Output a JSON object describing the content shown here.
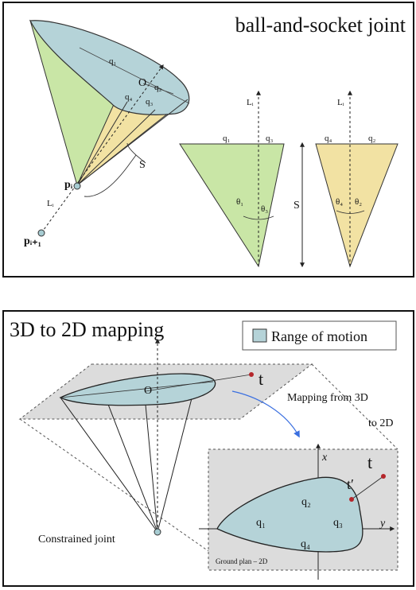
{
  "top_panel": {
    "title": "ball-and-socket joint",
    "labels": {
      "q1": "q₁",
      "q2": "q₂",
      "q3": "q₃",
      "q4": "q₄",
      "o": "O",
      "s": "S",
      "pi": "pᵢ",
      "pi1": "pᵢ₊₁",
      "li": "Lᵢ",
      "theta1": "θ₁",
      "theta2": "θ₂",
      "theta3": "θ₃",
      "theta4": "θ₄"
    }
  },
  "bottom_panel": {
    "title": "3D to 2D mapping",
    "legend": "Range of motion",
    "mapping_text_line1": "Mapping from 3D",
    "mapping_text_line2": "to 2D",
    "constrained_joint": "Constrained joint",
    "ground_plan": "Ground plan – 2D",
    "labels": {
      "o": "O",
      "t": "t",
      "t_prime": "t′",
      "x": "x",
      "y": "y",
      "q1": "q₁",
      "q2": "q₂",
      "q3": "q₃",
      "q4": "q₄"
    }
  },
  "colors": {
    "green": "#c9e6a6",
    "yellow": "#f2e2a3",
    "blue": "#b5d3d8",
    "plane": "#dcdcdc",
    "accent_arrow": "#3a6fe0",
    "point_red": "#b5262b"
  }
}
